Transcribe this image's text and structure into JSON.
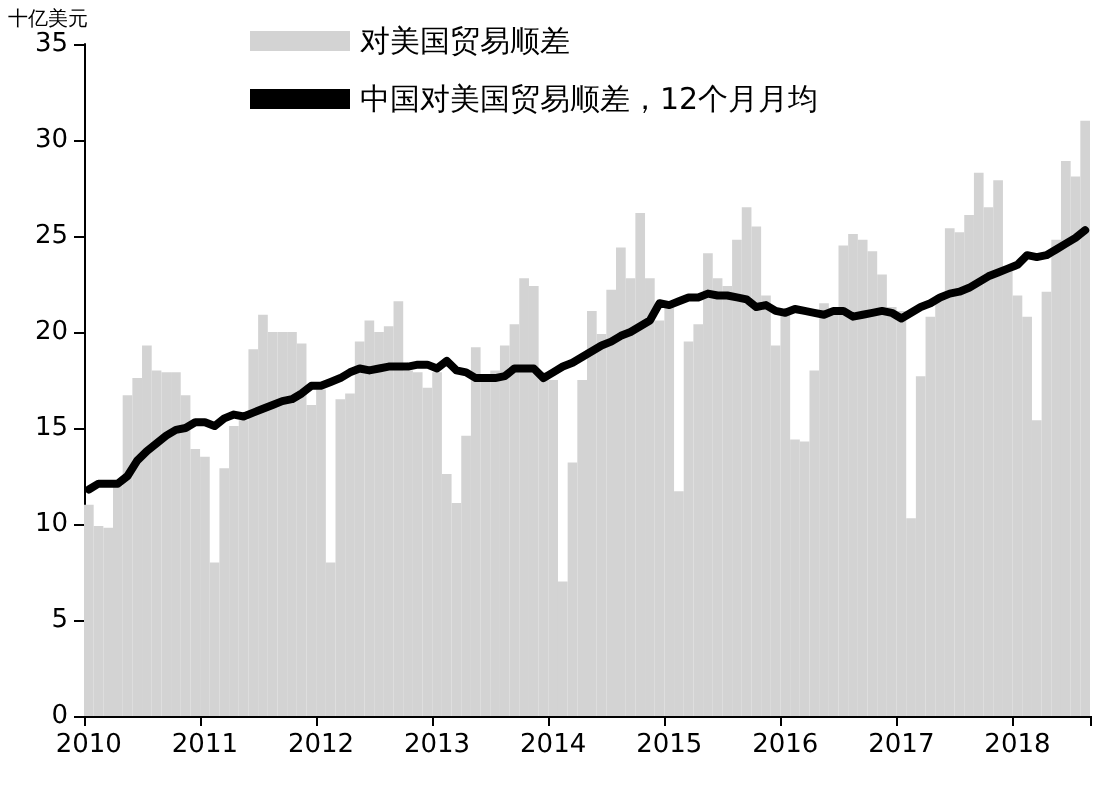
{
  "chart_data": {
    "type": "bar",
    "ylabel": "十亿美元",
    "categories": [
      "2010",
      null,
      null,
      null,
      null,
      null,
      null,
      null,
      null,
      null,
      null,
      null,
      "2011",
      null,
      null,
      null,
      null,
      null,
      null,
      null,
      null,
      null,
      null,
      null,
      "2012",
      null,
      null,
      null,
      null,
      null,
      null,
      null,
      null,
      null,
      null,
      null,
      "2013",
      null,
      null,
      null,
      null,
      null,
      null,
      null,
      null,
      null,
      null,
      null,
      "2014",
      null,
      null,
      null,
      null,
      null,
      null,
      null,
      null,
      null,
      null,
      null,
      "2015",
      null,
      null,
      null,
      null,
      null,
      null,
      null,
      null,
      null,
      null,
      null,
      "2016",
      null,
      null,
      null,
      null,
      null,
      null,
      null,
      null,
      null,
      null,
      null,
      "2017",
      null,
      null,
      null,
      null,
      null,
      null,
      null,
      null,
      null,
      null,
      null,
      "2018",
      null,
      null,
      null,
      null,
      null,
      null,
      null
    ],
    "series": [
      {
        "name": "对美国贸易顺差",
        "color": "#d3d3d3",
        "values": [
          11,
          9.9,
          9.8,
          12,
          16.7,
          17.6,
          19.3,
          18,
          17.9,
          17.9,
          16.7,
          13.9,
          13.5,
          8,
          12.9,
          15.1,
          15.4,
          19.1,
          20.9,
          20,
          20,
          20,
          19.4,
          16.2,
          17,
          8,
          16.5,
          16.8,
          19.5,
          20.6,
          20,
          20.3,
          21.6,
          18,
          17.9,
          17.1,
          17.9,
          12.6,
          11.1,
          14.6,
          19.2,
          17.5,
          18,
          19.3,
          20.4,
          22.8,
          22.4,
          17.9,
          17.5,
          7,
          13.2,
          17.5,
          21.1,
          19.9,
          22.2,
          24.4,
          22.8,
          26.2,
          22.8,
          20.6,
          21.5,
          11.7,
          19.5,
          20.4,
          24.1,
          22.8,
          22.4,
          24.8,
          26.5,
          25.5,
          21.9,
          19.3,
          21.1,
          14.4,
          14.3,
          18,
          21.5,
          21.2,
          24.5,
          25.1,
          24.8,
          24.2,
          23,
          21.3,
          21.1,
          10.3,
          17.7,
          20.8,
          21.9,
          25.4,
          25.2,
          26.1,
          28.3,
          26.5,
          27.9,
          23.3,
          21.9,
          20.8,
          15.4,
          22.1,
          24.8,
          28.9,
          28.1,
          31
        ]
      },
      {
        "name": "中国对美国贸易顺差，12个月月均",
        "type": "line",
        "color": "#000000",
        "values": [
          11.8,
          12.1,
          12.1,
          12.1,
          12.5,
          13.3,
          13.8,
          14.2,
          14.6,
          14.9,
          15,
          15.3,
          15.3,
          15.1,
          15.5,
          15.7,
          15.6,
          15.8,
          16,
          16.2,
          16.4,
          16.5,
          16.8,
          17.2,
          17.2,
          17.4,
          17.6,
          17.9,
          18.1,
          18,
          18.1,
          18.2,
          18.2,
          18.2,
          18.3,
          18.3,
          18.1,
          18.5,
          18,
          17.9,
          17.6,
          17.6,
          17.6,
          17.7,
          18.1,
          18.1,
          18.1,
          17.6,
          17.9,
          18.2,
          18.4,
          18.7,
          19,
          19.3,
          19.5,
          19.8,
          20,
          20.3,
          20.6,
          21.5,
          21.4,
          21.6,
          21.8,
          21.8,
          22,
          21.9,
          21.9,
          21.8,
          21.7,
          21.3,
          21.4,
          21.1,
          21,
          21.2,
          21.1,
          21,
          20.9,
          21.1,
          21.1,
          20.8,
          20.9,
          21,
          21.1,
          21,
          20.7,
          21,
          21.3,
          21.5,
          21.8,
          22,
          22.1,
          22.3,
          22.6,
          22.9,
          23.1,
          23.3,
          23.5,
          24,
          23.9,
          24,
          24.3,
          24.6,
          24.9,
          25.3
        ]
      }
    ],
    "ylim": [
      0,
      35
    ],
    "yticks": [
      0,
      5,
      10,
      15,
      20,
      25,
      30,
      35
    ],
    "grid": false,
    "legend": "top left",
    "marker": "none",
    "line_style": "solid"
  }
}
